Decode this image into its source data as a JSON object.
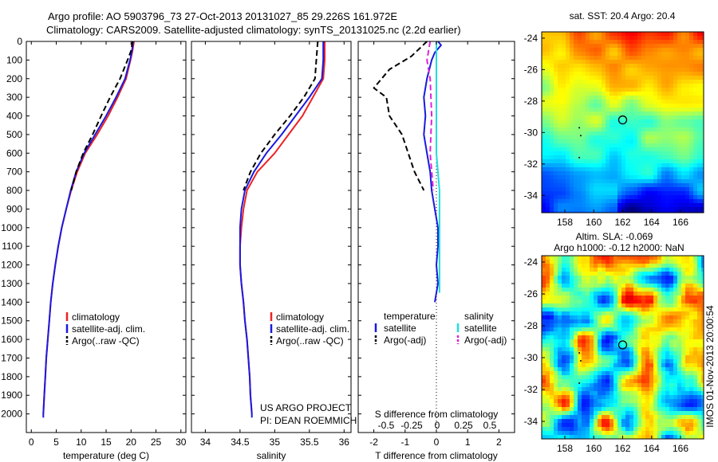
{
  "title_line1": "Argo profile: AO 5903796_73 27-Oct-2013 20131027_85 29.226S 161.972E",
  "title_line2": "Climatology: CARS2009. Satellite-adjusted climatology: synTS_20131025.nc (2.2d earlier)",
  "map_top_title": "sat. SST: 20.4  Argo: 20.4",
  "map_bottom_title1": "Altim. SLA: -0.069",
  "map_bottom_title2": "Argo h1000: -0.12  h2000: NaN",
  "side_text": "IMOS 01-Nov-2013 20:00:54",
  "credit_line1": "US ARGO PROJECT",
  "credit_line2": "PI: DEAN ROEMMICH",
  "colors": {
    "climatology": "#ee2222",
    "satellite": "#1a1adf",
    "argo": "#000000",
    "sal_satellite": "#22dddd",
    "sal_argo": "#dd22dd"
  },
  "chart_data": [
    {
      "type": "line",
      "xlabel": "temperature (deg C)",
      "ylabel": "",
      "xlim": [
        -1,
        31
      ],
      "ylim": [
        2100,
        0
      ],
      "xticks": [
        0,
        5,
        10,
        15,
        20,
        25,
        30
      ],
      "yticks": [
        0,
        100,
        200,
        300,
        400,
        500,
        600,
        700,
        800,
        900,
        1000,
        1100,
        1200,
        1300,
        1400,
        1500,
        1600,
        1700,
        1800,
        1900,
        2000
      ],
      "legend": [
        "climatology",
        "satellite-adj. clim.",
        "Argo(..raw -QC)"
      ],
      "series": [
        {
          "name": "climatology",
          "points": [
            [
              20.6,
              0
            ],
            [
              20.3,
              50
            ],
            [
              19.9,
              100
            ],
            [
              19.0,
              200
            ],
            [
              17.3,
              300
            ],
            [
              15.4,
              400
            ],
            [
              13.2,
              500
            ],
            [
              10.8,
              600
            ],
            [
              9.2,
              700
            ],
            [
              8.0,
              800
            ],
            [
              7.0,
              900
            ],
            [
              6.1,
              1000
            ],
            [
              5.4,
              1100
            ],
            [
              4.8,
              1200
            ],
            [
              4.3,
              1300
            ],
            [
              3.9,
              1400
            ],
            [
              3.6,
              1500
            ],
            [
              3.3,
              1600
            ],
            [
              3.0,
              1700
            ],
            [
              2.8,
              1800
            ],
            [
              2.6,
              1900
            ],
            [
              2.4,
              2000
            ]
          ]
        },
        {
          "name": "satellite-adj. clim.",
          "points": [
            [
              20.4,
              0
            ],
            [
              20.2,
              50
            ],
            [
              19.8,
              100
            ],
            [
              18.8,
              200
            ],
            [
              17.0,
              300
            ],
            [
              15.0,
              400
            ],
            [
              12.8,
              500
            ],
            [
              10.6,
              600
            ],
            [
              9.0,
              700
            ],
            [
              7.9,
              800
            ],
            [
              7.0,
              900
            ],
            [
              6.1,
              1000
            ],
            [
              5.4,
              1100
            ],
            [
              4.8,
              1200
            ],
            [
              4.3,
              1300
            ],
            [
              3.9,
              1400
            ],
            [
              3.6,
              1500
            ],
            [
              3.3,
              1600
            ],
            [
              3.0,
              1700
            ],
            [
              2.8,
              1800
            ],
            [
              2.6,
              1900
            ],
            [
              2.4,
              2000
            ],
            [
              2.4,
              2020
            ]
          ]
        },
        {
          "name": "Argo(..raw -QC)",
          "points": [
            [
              20.3,
              0
            ],
            [
              20.0,
              50
            ],
            [
              19.3,
              100
            ],
            [
              17.8,
              200
            ],
            [
              15.8,
              300
            ],
            [
              14.0,
              400
            ],
            [
              12.3,
              500
            ],
            [
              10.4,
              600
            ],
            [
              9.0,
              700
            ],
            [
              8.0,
              800
            ]
          ]
        }
      ]
    },
    {
      "type": "line",
      "xlabel": "salinity",
      "xlim": [
        33.8,
        36.1
      ],
      "ylim": [
        2100,
        0
      ],
      "xticks": [
        34,
        34.5,
        35,
        35.5,
        36
      ],
      "legend": [
        "climatology",
        "satellite-adj. clim.",
        "Argo(..raw -QC)"
      ],
      "series": [
        {
          "name": "climatology",
          "points": [
            [
              35.72,
              0
            ],
            [
              35.72,
              100
            ],
            [
              35.7,
              200
            ],
            [
              35.55,
              300
            ],
            [
              35.4,
              400
            ],
            [
              35.2,
              500
            ],
            [
              35.0,
              600
            ],
            [
              34.75,
              700
            ],
            [
              34.6,
              800
            ],
            [
              34.55,
              900
            ],
            [
              34.52,
              1000
            ],
            [
              34.5,
              1100
            ],
            [
              34.5,
              1200
            ],
            [
              34.52,
              1300
            ],
            [
              34.55,
              1400
            ],
            [
              34.57,
              1500
            ],
            [
              34.6,
              1600
            ],
            [
              34.62,
              1700
            ],
            [
              34.64,
              1800
            ],
            [
              34.65,
              1900
            ],
            [
              34.67,
              2000
            ]
          ]
        },
        {
          "name": "satellite-adj. clim.",
          "points": [
            [
              35.7,
              0
            ],
            [
              35.7,
              100
            ],
            [
              35.68,
              200
            ],
            [
              35.5,
              300
            ],
            [
              35.3,
              400
            ],
            [
              35.1,
              500
            ],
            [
              34.88,
              600
            ],
            [
              34.7,
              700
            ],
            [
              34.57,
              800
            ],
            [
              34.52,
              900
            ],
            [
              34.5,
              1000
            ],
            [
              34.5,
              1100
            ],
            [
              34.5,
              1200
            ],
            [
              34.52,
              1300
            ],
            [
              34.55,
              1400
            ],
            [
              34.57,
              1500
            ],
            [
              34.6,
              1600
            ],
            [
              34.62,
              1700
            ],
            [
              34.64,
              1800
            ],
            [
              34.65,
              1900
            ],
            [
              34.67,
              2000
            ],
            [
              34.67,
              2020
            ]
          ]
        },
        {
          "name": "Argo(..raw -QC)",
          "points": [
            [
              35.62,
              0
            ],
            [
              35.6,
              100
            ],
            [
              35.58,
              200
            ],
            [
              35.42,
              300
            ],
            [
              35.22,
              400
            ],
            [
              35.0,
              500
            ],
            [
              34.8,
              600
            ],
            [
              34.65,
              700
            ],
            [
              34.55,
              800
            ]
          ]
        }
      ]
    },
    {
      "type": "line",
      "xlabel": "T difference from climatology",
      "xlabel2": "S difference from climatology",
      "xlim": [
        -2.5,
        2.5
      ],
      "ylim": [
        2100,
        0
      ],
      "xticks": [
        -2,
        -1,
        0,
        1,
        2
      ],
      "xticks2_labels": [
        "-0.5",
        "-0.25",
        "0",
        "0.25",
        "0.5"
      ],
      "legend_temperature": [
        "temperature",
        "satellite",
        "Argo(-adj)"
      ],
      "legend_salinity": [
        "salinity",
        "satellite",
        "Argo(-adj)"
      ],
      "series": [
        {
          "name": "temperature satellite",
          "points": [
            [
              0.05,
              0
            ],
            [
              0.15,
              20
            ],
            [
              -0.05,
              60
            ],
            [
              -0.15,
              100
            ],
            [
              -0.3,
              200
            ],
            [
              -0.4,
              300
            ],
            [
              -0.35,
              400
            ],
            [
              -0.4,
              500
            ],
            [
              -0.3,
              600
            ],
            [
              -0.2,
              700
            ],
            [
              -0.15,
              800
            ],
            [
              -0.05,
              900
            ],
            [
              0.05,
              1000
            ],
            [
              0.05,
              1100
            ],
            [
              0.0,
              1200
            ],
            [
              0.05,
              1300
            ],
            [
              -0.05,
              1400
            ]
          ]
        },
        {
          "name": "temperature Argo(-adj)",
          "points": [
            [
              -0.3,
              0
            ],
            [
              -0.8,
              80
            ],
            [
              -1.5,
              150
            ],
            [
              -2.0,
              250
            ],
            [
              -1.6,
              300
            ],
            [
              -1.5,
              400
            ],
            [
              -1.1,
              500
            ],
            [
              -0.9,
              600
            ],
            [
              -0.7,
              700
            ],
            [
              -0.4,
              800
            ]
          ]
        },
        {
          "name": "salinity satellite",
          "points": [
            [
              0.0,
              0
            ],
            [
              0.0,
              200
            ],
            [
              0.0,
              400
            ],
            [
              0.0,
              600
            ],
            [
              0.1,
              800
            ],
            [
              0.1,
              1000
            ],
            [
              0.1,
              1200
            ],
            [
              0.1,
              1350
            ]
          ]
        },
        {
          "name": "salinity Argo(-adj)",
          "points": [
            [
              -0.2,
              0
            ],
            [
              -0.3,
              100
            ],
            [
              -0.2,
              200
            ],
            [
              -0.15,
              400
            ],
            [
              -0.2,
              600
            ],
            [
              -0.1,
              800
            ]
          ]
        }
      ]
    },
    {
      "type": "heatmap",
      "title": "sat. SST: 20.4  Argo: 20.4",
      "xticks": [
        158,
        160,
        162,
        164,
        166
      ],
      "yticks": [
        -24,
        -26,
        -28,
        -30,
        -32,
        -34
      ],
      "xlim": [
        156.4,
        167.6
      ],
      "ylim": [
        -35.1,
        -23.6
      ],
      "marker": [
        162.0,
        -29.2
      ]
    },
    {
      "type": "heatmap",
      "title": "Altim. SLA: -0.069",
      "xticks": [
        158,
        160,
        162,
        164,
        166
      ],
      "yticks": [
        -24,
        -26,
        -28,
        -30,
        -32,
        -34
      ],
      "xlim": [
        156.4,
        167.6
      ],
      "ylim": [
        -35.1,
        -23.6
      ],
      "marker": [
        162.0,
        -29.2
      ]
    }
  ]
}
